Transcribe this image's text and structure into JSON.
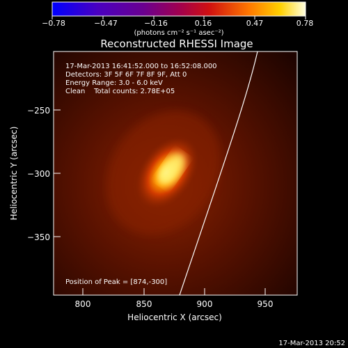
{
  "colorbar": {
    "ticks": [
      "−0.78",
      "−0.47",
      "−0.16",
      "0.16",
      "0.47",
      "0.78"
    ],
    "units": "(photons cm⁻² s⁻¹ asec⁻²)"
  },
  "title": "Reconstructed RHESSI Image",
  "info": {
    "time_range": "17-Mar-2013 16:41:52.000 to 16:52:08.000",
    "detectors": "Detectors: 3F 5F 6F 7F 8F 9F, Att 0",
    "energy": "Energy Range: 3.0 - 6.0 keV",
    "clean": "Clean    Total counts: 2.78E+05",
    "peak": "Position of Peak = [874,-300]"
  },
  "axes": {
    "xlabel": "Heliocentric X (arcsec)",
    "ylabel": "Heliocentric Y (arcsec)",
    "xticks": [
      "800",
      "850",
      "900",
      "950"
    ],
    "yticks": [
      "−250",
      "−300",
      "−350"
    ]
  },
  "timestamp": "17-Mar-2013 20:52",
  "colors": {
    "background": "#000000",
    "peak": "#ffffe0",
    "limb": "#ffffff"
  }
}
